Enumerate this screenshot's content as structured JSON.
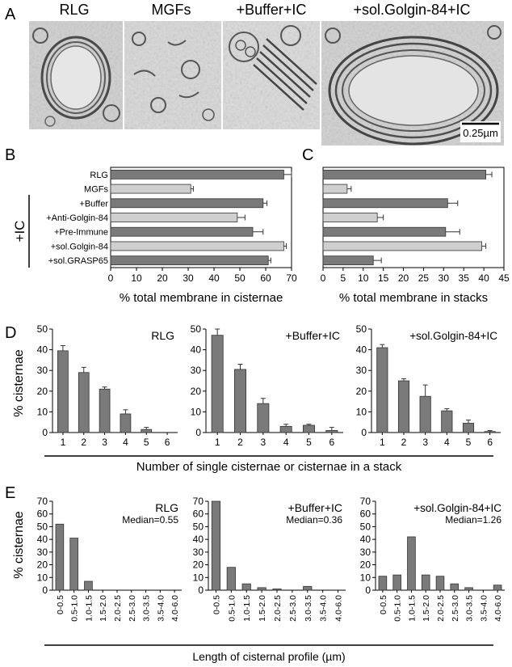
{
  "panel_labels": [
    "A",
    "B",
    "C",
    "D",
    "E"
  ],
  "micrograph_titles": [
    "RLG",
    "MGFs",
    "+Buffer+IC",
    "+sol.Golgin-84+IC"
  ],
  "scale_bar_label": "0.25µm",
  "ic_bracket_label": "+IC",
  "d_ylabel": "% cisternae",
  "d_xlabel": "Number of single cisternae or cisternae in a stack",
  "e_ylabel": "% cisternae",
  "e_xlabel": "Length of cisternal profile (µm)",
  "colors": {
    "dark_bar": "#7a7a7a",
    "light_bar": "#cfcfcf",
    "axis": "#000000"
  },
  "chart_data": [
    {
      "id": "B",
      "type": "bar",
      "orientation": "horizontal",
      "categories": [
        "RLG",
        "MGFs",
        "+Buffer",
        "+Anti-Golgin-84",
        "+Pre-Immune",
        "+sol.Golgin-84",
        "+sol.GRASP65"
      ],
      "values": [
        67,
        31,
        59,
        49,
        55,
        67,
        61
      ],
      "errors": [
        3,
        1,
        1.5,
        3,
        4,
        1,
        1
      ],
      "shade": [
        "dark",
        "light",
        "dark",
        "light",
        "dark",
        "light",
        "dark"
      ],
      "xlim": [
        0,
        70
      ],
      "xticks": [
        0,
        10,
        20,
        30,
        40,
        50,
        60,
        70
      ],
      "xlabel": "% total membrane in cisternae"
    },
    {
      "id": "C",
      "type": "bar",
      "orientation": "horizontal",
      "categories": [
        "RLG",
        "MGFs",
        "+Buffer",
        "+Anti-Golgin-84",
        "+Pre-Immune",
        "+sol.Golgin-84",
        "+sol.GRASP65"
      ],
      "values": [
        40.5,
        6,
        31,
        13.5,
        30.5,
        39.5,
        12.5
      ],
      "errors": [
        1.5,
        1,
        2.5,
        1.5,
        3.5,
        1,
        2
      ],
      "shade": [
        "dark",
        "light",
        "dark",
        "light",
        "dark",
        "light",
        "dark"
      ],
      "xlim": [
        0,
        45
      ],
      "xticks": [
        0,
        5,
        10,
        15,
        20,
        25,
        30,
        35,
        40,
        45
      ],
      "xlabel": "% total membrane in stacks"
    },
    {
      "id": "D1",
      "type": "bar",
      "title": "RLG",
      "categories": [
        "1",
        "2",
        "3",
        "4",
        "5",
        "6"
      ],
      "values": [
        39.5,
        29,
        21,
        9,
        1.5,
        0
      ],
      "errors": [
        2.5,
        2.5,
        1,
        2,
        1,
        0
      ],
      "ylim": [
        0,
        50
      ],
      "yticks": [
        0,
        10,
        20,
        30,
        40,
        50
      ]
    },
    {
      "id": "D2",
      "type": "bar",
      "title": "+Buffer+IC",
      "categories": [
        "1",
        "2",
        "3",
        "4",
        "5",
        "6"
      ],
      "values": [
        47,
        30.5,
        14,
        3,
        3.5,
        1
      ],
      "errors": [
        3,
        2.5,
        2.5,
        1,
        0.5,
        1.5
      ],
      "ylim": [
        0,
        50
      ],
      "yticks": [
        0,
        10,
        20,
        30,
        40,
        50
      ]
    },
    {
      "id": "D3",
      "type": "bar",
      "title": "+sol.Golgin-84+IC",
      "categories": [
        "1",
        "2",
        "3",
        "4",
        "5",
        "6"
      ],
      "values": [
        41,
        25,
        17.5,
        10.5,
        4.5,
        0.5
      ],
      "errors": [
        1.5,
        1,
        5.5,
        1,
        1.5,
        0.5
      ],
      "ylim": [
        0,
        50
      ],
      "yticks": [
        0,
        10,
        20,
        30,
        40,
        50
      ]
    },
    {
      "id": "E1",
      "type": "bar",
      "title": "RLG",
      "median_label": "Median=0.55",
      "categories": [
        "0-0.5",
        "0.5-1.0",
        "1.0-1.5",
        "1.5-2.0",
        "2.0-2.5",
        "2.5-3.0",
        "3.0-3.5",
        "3.5-4.0",
        "4.0-6.0"
      ],
      "values": [
        52,
        41,
        7,
        0,
        0,
        0,
        0,
        0,
        0
      ],
      "ylim": [
        0,
        70
      ],
      "yticks": [
        0,
        10,
        20,
        30,
        40,
        50,
        60,
        70
      ]
    },
    {
      "id": "E2",
      "type": "bar",
      "title": "+Buffer+IC",
      "median_label": "Median=0.36",
      "categories": [
        "0-0.5",
        "0.5-1.0",
        "1.0-1.5",
        "1.5-2.0",
        "2.0-2.5",
        "2.5-3.0",
        "3.0-3.5",
        "3.5-4.0",
        "4.0-6.0"
      ],
      "values": [
        72,
        18,
        5,
        2,
        1,
        0,
        3,
        0,
        0
      ],
      "ylim": [
        0,
        70
      ],
      "yticks": [
        0,
        10,
        20,
        30,
        40,
        50,
        60,
        70
      ]
    },
    {
      "id": "E3",
      "type": "bar",
      "title": "+sol.Golgin-84+IC",
      "median_label": "Median=1.26",
      "categories": [
        "0-0.5",
        "0.5-1.0",
        "1.0-1.5",
        "1.5-2.0",
        "2.0-2.5",
        "2.5-3.0",
        "3.0-3.5",
        "3.5-4.0",
        "4.0-6.0"
      ],
      "values": [
        11,
        12,
        42,
        12,
        11,
        5,
        2,
        0,
        4
      ],
      "ylim": [
        0,
        70
      ],
      "yticks": [
        0,
        10,
        20,
        30,
        40,
        50,
        60,
        70
      ]
    }
  ]
}
